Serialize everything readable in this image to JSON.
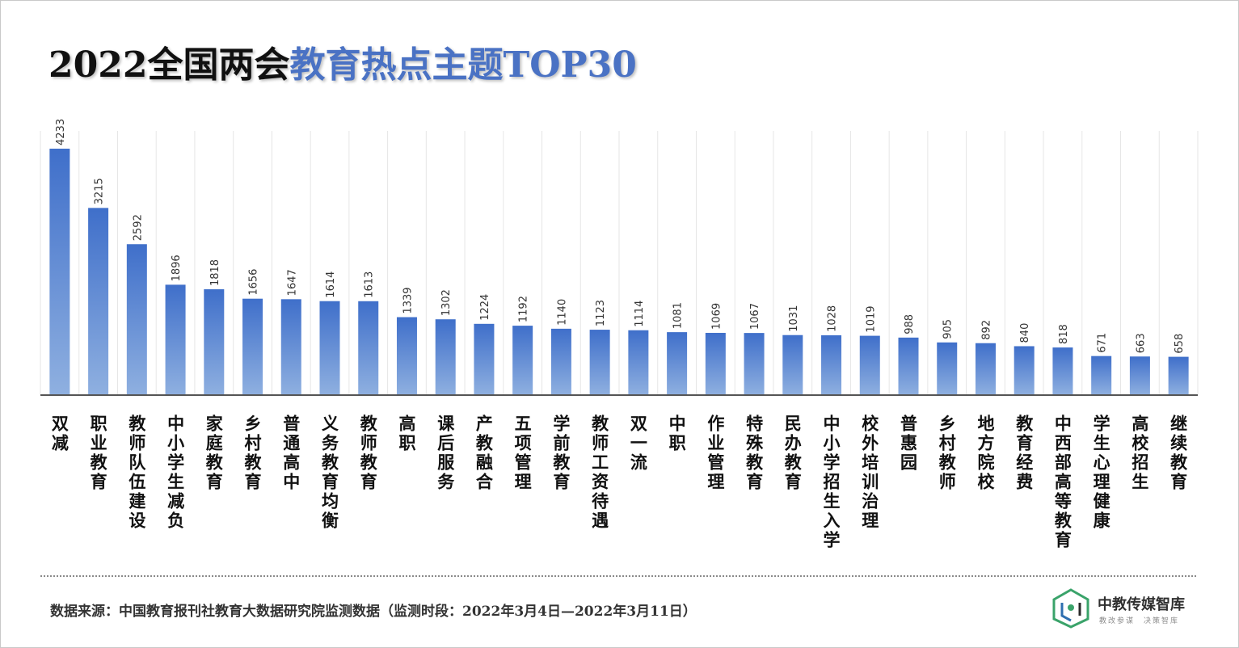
{
  "title": {
    "part1": "2022全国两会",
    "part2": "教育热点主题TOP30"
  },
  "source": "数据来源：中国教育报刊社教育大数据研究院监测数据（监测时段：2022年3月4日—2022年3月11日）",
  "logo": {
    "name": "中教传媒智库",
    "tagline": "教改参谋　决策智库"
  },
  "colors": {
    "bar_top": "#3f6fca",
    "bar_bottom": "#8fb0e0",
    "title_accent": "#4a72c4",
    "axis": "#555555",
    "grid": "#e6e6e6"
  },
  "chart_data": {
    "type": "bar",
    "categories": [
      "双减",
      "职业教育",
      "教师队伍建设",
      "中小学生减负",
      "家庭教育",
      "乡村教育",
      "普通高中",
      "义务教育均衡",
      "教师教育",
      "高职",
      "课后服务",
      "产教融合",
      "五项管理",
      "学前教育",
      "教师工资待遇",
      "双一流",
      "中职",
      "作业管理",
      "特殊教育",
      "民办教育",
      "中小学招生入学",
      "校外培训治理",
      "普惠园",
      "乡村教师",
      "地方院校",
      "教育经费",
      "中西部高等教育",
      "学生心理健康",
      "高校招生",
      "继续教育"
    ],
    "values": [
      4233,
      3215,
      2592,
      1896,
      1818,
      1656,
      1647,
      1614,
      1613,
      1339,
      1302,
      1224,
      1192,
      1140,
      1123,
      1114,
      1081,
      1069,
      1067,
      1031,
      1028,
      1019,
      988,
      905,
      892,
      840,
      818,
      671,
      663,
      658
    ],
    "value_labels": [
      "4233",
      "3215",
      "2592",
      "1896",
      "1818",
      "1656",
      "1647",
      "1614",
      "1613",
      "1339",
      "1302",
      "1224",
      "1192",
      "1140",
      "1123",
      "1114",
      "1081",
      "1069",
      "1067",
      "1031",
      "1028",
      "1019",
      "988",
      "905",
      "892",
      "840",
      "818",
      "671",
      "663",
      "658"
    ],
    "ylim": [
      0,
      4233
    ],
    "grid": true,
    "legend": "none"
  }
}
